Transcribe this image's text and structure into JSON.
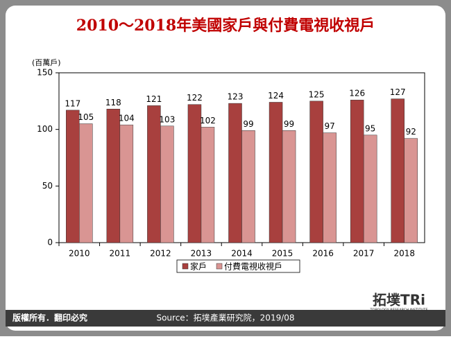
{
  "chart_data": {
    "type": "bar",
    "title": "2010～2018年美國家戶與付費電視收視戶",
    "y_label": "(百萬戶)",
    "categories": [
      "2010",
      "2011",
      "2012",
      "2013",
      "2014",
      "2015",
      "2016",
      "2017",
      "2018"
    ],
    "series": [
      {
        "name": "家戶",
        "color": "#a8403e",
        "values": [
          117,
          118,
          121,
          122,
          123,
          124,
          125,
          126,
          127
        ]
      },
      {
        "name": "付費電視收視戶",
        "color": "#d99593",
        "values": [
          105,
          104,
          103,
          102,
          99,
          99,
          97,
          95,
          92
        ]
      }
    ],
    "ylim": [
      0,
      150
    ],
    "yticks": [
      0,
      50,
      100,
      150
    ],
    "grid": false,
    "legend": "bottom"
  },
  "footer": {
    "copyright": "版權所有．翻印必究",
    "source": "Source：拓墣產業研究院，2019/08",
    "logo": "拓墣TRi",
    "logo_subtitle": "TOPOLOGY RESEARCH INSTITUTE"
  }
}
